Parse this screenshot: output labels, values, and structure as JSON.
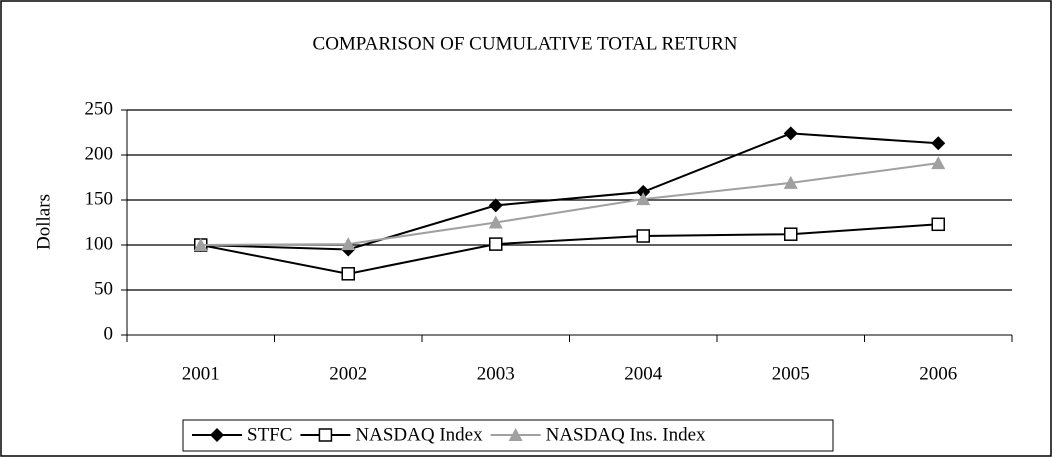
{
  "chart_data": {
    "type": "line",
    "title": "COMPARISON OF CUMULATIVE TOTAL RETURN",
    "y_label": "Dollars",
    "categories": [
      "2001",
      "2002",
      "2003",
      "2004",
      "2005",
      "2006"
    ],
    "series": [
      {
        "name": "STFC",
        "color": "#000000",
        "marker": "diamond",
        "values": [
          100,
          95,
          144,
          159,
          224,
          213
        ]
      },
      {
        "name": "NASDAQ Index",
        "color": "#000000",
        "marker": "square",
        "values": [
          100,
          68,
          101,
          110,
          112,
          123
        ]
      },
      {
        "name": "NASDAQ Ins. Index",
        "color": "#a0a0a0",
        "marker": "triangle",
        "values": [
          100,
          101,
          125,
          151,
          169,
          191
        ]
      }
    ],
    "ylim": [
      0,
      250
    ],
    "yticks": [
      0,
      50,
      100,
      150,
      200,
      250
    ],
    "grid": true,
    "legend": "bottom"
  }
}
